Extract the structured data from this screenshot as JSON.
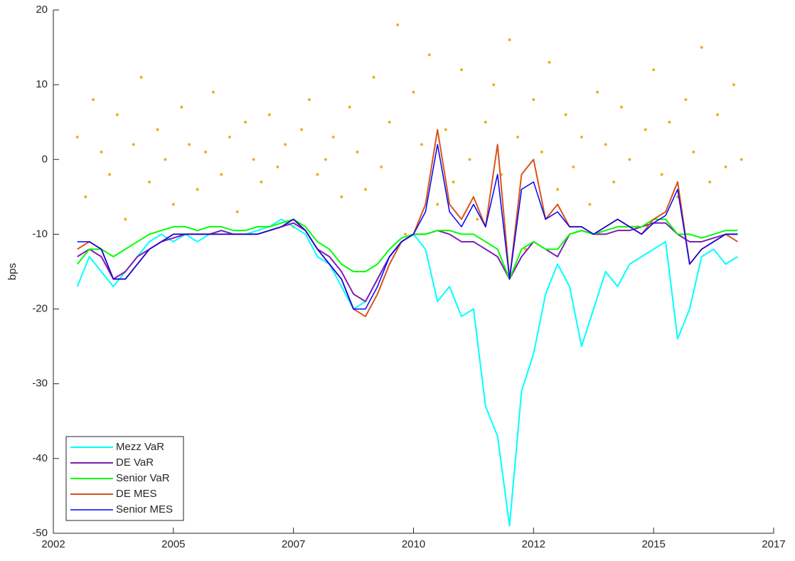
{
  "chart_data": {
    "type": "line",
    "ylabel": "bps",
    "xlim": [
      2002,
      2017
    ],
    "ylim": [
      -50,
      20
    ],
    "xticks": [
      {
        "value": 2002,
        "label": "2002"
      },
      {
        "value": 2004.5,
        "label": "2005"
      },
      {
        "value": 2007,
        "label": "2007"
      },
      {
        "value": 2009.5,
        "label": "2010"
      },
      {
        "value": 2012,
        "label": "2012"
      },
      {
        "value": 2014.5,
        "label": "2015"
      },
      {
        "value": 2017,
        "label": "2017"
      }
    ],
    "yticks": [
      -50,
      -40,
      -30,
      -20,
      -10,
      0,
      10,
      20
    ],
    "legend": "lower left",
    "x": [
      2002.5,
      2002.75,
      2003,
      2003.25,
      2003.5,
      2003.75,
      2004,
      2004.25,
      2004.5,
      2004.75,
      2005,
      2005.25,
      2005.5,
      2005.75,
      2006,
      2006.25,
      2006.5,
      2006.75,
      2007,
      2007.25,
      2007.5,
      2007.75,
      2008,
      2008.25,
      2008.5,
      2008.75,
      2009,
      2009.25,
      2009.5,
      2009.75,
      2010,
      2010.25,
      2010.5,
      2010.75,
      2011,
      2011.25,
      2011.5,
      2011.75,
      2012,
      2012.25,
      2012.5,
      2012.75,
      2013,
      2013.25,
      2013.5,
      2013.75,
      2014,
      2014.25,
      2014.5,
      2014.75,
      2015,
      2015.25,
      2015.5,
      2015.75,
      2016,
      2016.25
    ],
    "series": [
      {
        "name": "Mezz VaR",
        "color": "#00ffff",
        "width": 2,
        "values": [
          -17,
          -13,
          -15,
          -17,
          -15,
          -13,
          -11,
          -10,
          -11,
          -10,
          -11,
          -10,
          -9.5,
          -10,
          -10,
          -9.5,
          -9,
          -8,
          -9,
          -10,
          -13,
          -14,
          -17,
          -20,
          -19,
          -16,
          -13,
          -11,
          -10,
          -12,
          -19,
          -17,
          -21,
          -20,
          -33,
          -37,
          -49,
          -31,
          -26,
          -18,
          -14,
          -17,
          -25,
          -20,
          -15,
          -17,
          -14,
          -13,
          -12,
          -11,
          -24,
          -20,
          -13,
          -12,
          -14,
          -13
        ]
      },
      {
        "name": "DE VaR",
        "color": "#7e1fb3",
        "width": 2,
        "values": [
          -13,
          -12,
          -13,
          -16,
          -15,
          -13,
          -12,
          -11,
          -10.5,
          -10,
          -10,
          -10,
          -9.5,
          -10,
          -10,
          -10,
          -9.5,
          -9,
          -8.5,
          -9.5,
          -12,
          -13,
          -15,
          -18,
          -19,
          -16,
          -13,
          -11,
          -10,
          -10,
          -9.5,
          -10,
          -11,
          -11,
          -12,
          -13,
          -16,
          -13,
          -11,
          -12,
          -13,
          -10,
          -9.5,
          -10,
          -10,
          -9.5,
          -9.5,
          -9,
          -8.5,
          -8.5,
          -10,
          -11,
          -11,
          -10.5,
          -10,
          -10
        ]
      },
      {
        "name": "Senior VaR",
        "color": "#00ff00",
        "width": 2,
        "values": [
          -14,
          -12,
          -12,
          -13,
          -12,
          -11,
          -10,
          -9.5,
          -9,
          -9,
          -9.5,
          -9,
          -9,
          -9.5,
          -9.5,
          -9,
          -9,
          -8.5,
          -8,
          -9,
          -11,
          -12,
          -14,
          -15,
          -15,
          -14,
          -12,
          -10.5,
          -10,
          -10,
          -9.5,
          -9.5,
          -10,
          -10,
          -11,
          -12,
          -16,
          -12,
          -11,
          -12,
          -12,
          -10,
          -9.5,
          -10,
          -9.5,
          -9,
          -9,
          -9,
          -8,
          -8,
          -10,
          -10,
          -10.5,
          -10,
          -9.5,
          -9.5
        ]
      },
      {
        "name": "DE MES",
        "color": "#d95319",
        "width": 2,
        "values": [
          -12,
          -11,
          -12,
          -16,
          -16,
          -14,
          -12,
          -11,
          -10,
          -10,
          -10,
          -10,
          -10,
          -10,
          -10,
          -10,
          -9.5,
          -9,
          -8,
          -9.5,
          -12,
          -14,
          -16,
          -20,
          -21,
          -18,
          -14,
          -11,
          -10,
          -6,
          4,
          -6,
          -8,
          -5,
          -9,
          2,
          -16,
          -2,
          0,
          -8,
          -6,
          -9,
          -9,
          -10,
          -9,
          -8,
          -9,
          -10,
          -8,
          -7,
          -3,
          -14,
          -12,
          -11,
          -10,
          -11
        ]
      },
      {
        "name": "Senior MES",
        "color": "#0000ff",
        "width": 1.5,
        "values": [
          -11,
          -11,
          -12,
          -16,
          -16,
          -14,
          -12,
          -11,
          -10,
          -10,
          -10,
          -10,
          -10,
          -10,
          -10,
          -10,
          -9.5,
          -9,
          -8,
          -9.5,
          -12,
          -14,
          -16,
          -20,
          -20,
          -17,
          -13,
          -11,
          -10,
          -7,
          2,
          -7,
          -9,
          -6,
          -9,
          -2,
          -16,
          -4,
          -3,
          -8,
          -7,
          -9,
          -9,
          -10,
          -9,
          -8,
          -9,
          -10,
          -8.5,
          -7.5,
          -4,
          -14,
          -12,
          -11,
          -10,
          -10
        ]
      }
    ],
    "points": {
      "color": "#edb120",
      "x": [
        2002.5,
        2002.67,
        2002.83,
        2003,
        2003.17,
        2003.33,
        2003.5,
        2003.67,
        2003.83,
        2004,
        2004.17,
        2004.33,
        2004.5,
        2004.67,
        2004.83,
        2005,
        2005.17,
        2005.33,
        2005.5,
        2005.67,
        2005.83,
        2006,
        2006.17,
        2006.33,
        2006.5,
        2006.67,
        2006.83,
        2007,
        2007.17,
        2007.33,
        2007.5,
        2007.67,
        2007.83,
        2008,
        2008.17,
        2008.33,
        2008.5,
        2008.67,
        2008.83,
        2009,
        2009.17,
        2009.33,
        2009.5,
        2009.67,
        2009.83,
        2010,
        2010.17,
        2010.33,
        2010.5,
        2010.67,
        2010.83,
        2011,
        2011.17,
        2011.33,
        2011.5,
        2011.67,
        2011.83,
        2012,
        2012.17,
        2012.33,
        2012.5,
        2012.67,
        2012.83,
        2013,
        2013.17,
        2013.33,
        2013.5,
        2013.67,
        2013.83,
        2014,
        2014.17,
        2014.33,
        2014.5,
        2014.67,
        2014.83,
        2015,
        2015.17,
        2015.33,
        2015.5,
        2015.67,
        2015.83,
        2016,
        2016.17,
        2016.33
      ],
      "y": [
        3,
        -5,
        8,
        1,
        -2,
        6,
        -8,
        2,
        11,
        -3,
        4,
        0,
        -6,
        7,
        2,
        -4,
        1,
        9,
        -2,
        3,
        -7,
        5,
        0,
        -3,
        6,
        -1,
        2,
        -9,
        4,
        8,
        -2,
        0,
        3,
        -5,
        7,
        1,
        -4,
        11,
        -1,
        5,
        18,
        -10,
        9,
        2,
        14,
        -6,
        4,
        -3,
        12,
        0,
        -8,
        5,
        10,
        -2,
        16,
        3,
        -12,
        8,
        1,
        13,
        -4,
        6,
        -1,
        3,
        -6,
        9,
        2,
        -3,
        7,
        0,
        -9,
        4,
        12,
        -2,
        5,
        -5,
        8,
        1,
        15,
        -3,
        6,
        -1,
        10,
        0
      ]
    }
  }
}
